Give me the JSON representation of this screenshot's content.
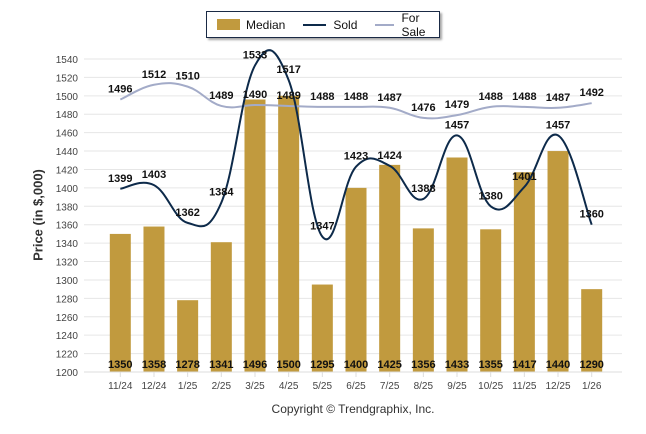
{
  "chart_data": {
    "type": "bar",
    "title": "",
    "xlabel": "",
    "ylabel": "Price (in $,000)",
    "ylim": [
      1200,
      1540
    ],
    "ytick_step": 20,
    "grid": true,
    "legend_position": "top-center",
    "categories": [
      "11/24",
      "12/24",
      "1/25",
      "2/25",
      "3/25",
      "4/25",
      "5/25",
      "6/25",
      "7/25",
      "8/25",
      "9/25",
      "10/25",
      "11/25",
      "12/25",
      "1/26"
    ],
    "series": [
      {
        "name": "Median",
        "type": "bar",
        "color": "#c19a3e",
        "values": [
          1350,
          1358,
          1278,
          1341,
          1496,
          1500,
          1295,
          1400,
          1425,
          1356,
          1433,
          1355,
          1417,
          1440,
          1290
        ]
      },
      {
        "name": "Sold",
        "type": "line",
        "color": "#0d2a4a",
        "values": [
          1399,
          1403,
          1362,
          1384,
          1533,
          1517,
          1347,
          1423,
          1424,
          1388,
          1457,
          1380,
          1401,
          1457,
          1360
        ]
      },
      {
        "name": "For Sale",
        "type": "line",
        "color": "#a3abc8",
        "values": [
          1496,
          1512,
          1510,
          1489,
          1490,
          1489,
          1488,
          1488,
          1487,
          1476,
          1479,
          1488,
          1488,
          1487,
          1492
        ]
      }
    ]
  },
  "legend": {
    "median": "Median",
    "sold": "Sold",
    "for_sale": "For Sale"
  },
  "footer": {
    "copyright": "Copyright © Trendgraphix, Inc."
  }
}
